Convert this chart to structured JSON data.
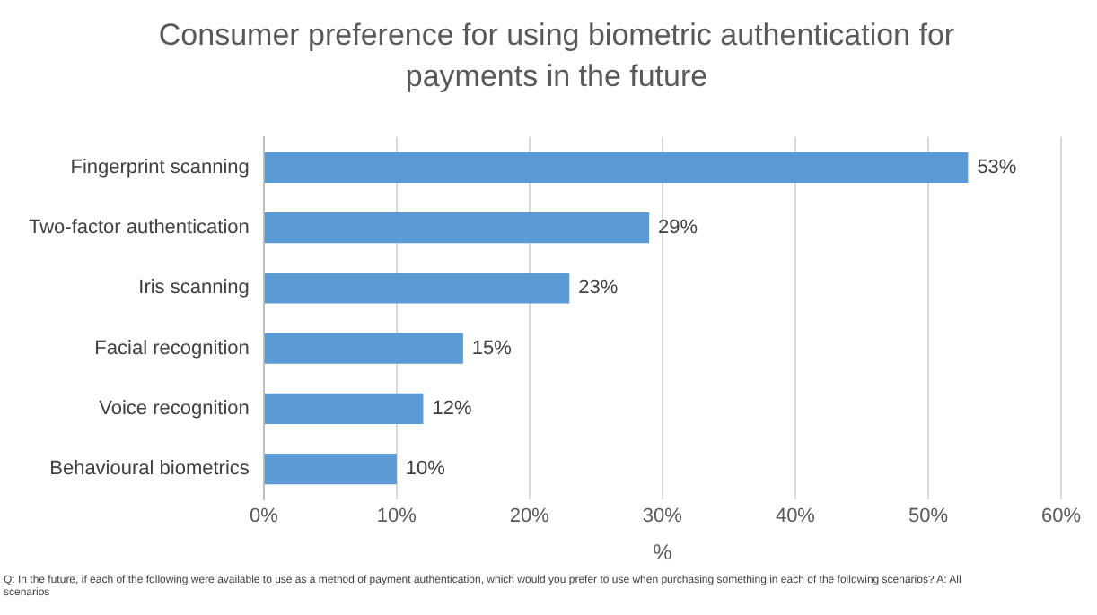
{
  "chart_data": {
    "type": "bar",
    "orientation": "horizontal",
    "title": "Consumer preference for using biometric authentication for payments in the future",
    "categories": [
      "Fingerprint scanning",
      "Two-factor authentication",
      "Iris scanning",
      "Facial recognition",
      "Voice recognition",
      "Behavioural biometrics"
    ],
    "values": [
      53,
      29,
      23,
      15,
      12,
      10
    ],
    "value_labels": [
      "53%",
      "29%",
      "23%",
      "15%",
      "12%",
      "10%"
    ],
    "color": "#5b9bd5",
    "xlabel": "%",
    "xlim": [
      0,
      60
    ],
    "xticks": [
      {
        "value": 0,
        "label": "0%"
      },
      {
        "value": 10,
        "label": "10%"
      },
      {
        "value": 20,
        "label": "20%"
      },
      {
        "value": 30,
        "label": "30%"
      },
      {
        "value": 40,
        "label": "40%"
      },
      {
        "value": 50,
        "label": "50%"
      },
      {
        "value": 60,
        "label": "60%"
      }
    ],
    "grid": "x",
    "legend": false,
    "annotations": [
      "Q: In the future, if each of the following were available to use as a method of payment authentication, which would you prefer to use when purchasing something in each of the following scenarios? A: All scenarios"
    ]
  }
}
